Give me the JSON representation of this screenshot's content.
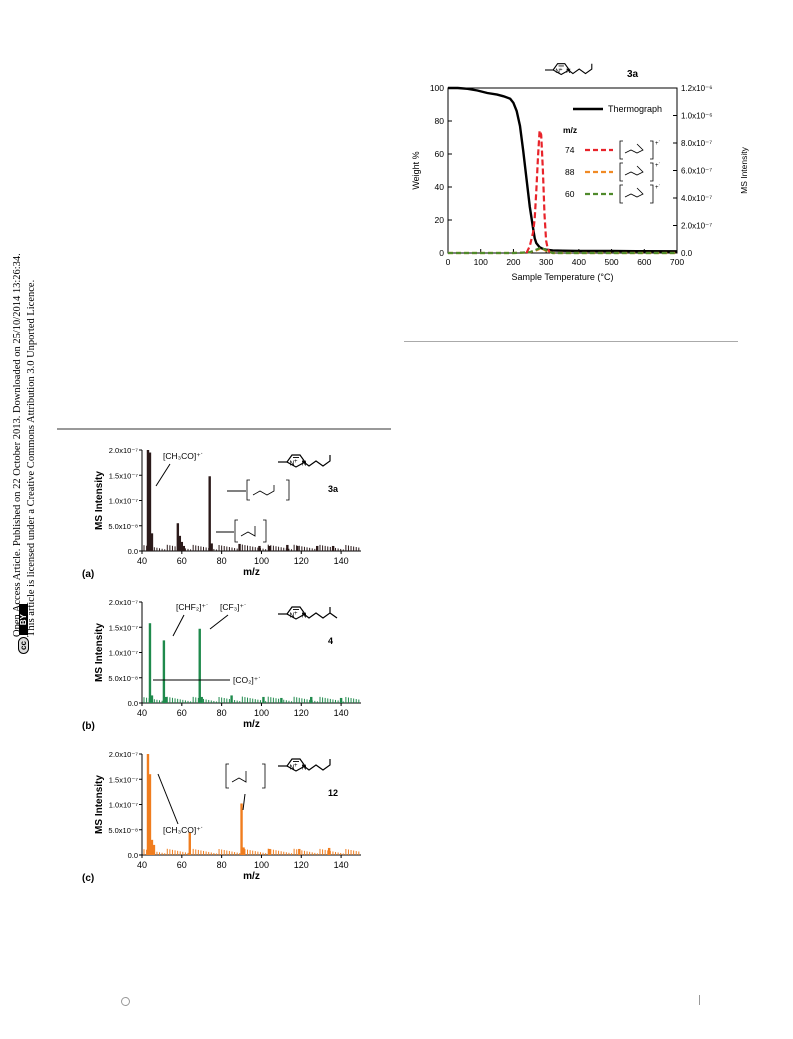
{
  "side_notice": {
    "line1": "Open Access Article. Published on 22 October 2013. Downloaded on 25/10/2014 13:26:34.",
    "line2": "This article is licensed under a Creative Commons Attribution 3.0 Unported Licence.",
    "badge_cc": "cc",
    "badge_by": "BY"
  },
  "chart_data": [
    {
      "type": "line",
      "compound_label": "3a",
      "xlabel": "Sample Temperature (°C)",
      "ylabel": "Weight %",
      "y2label": "MS Intensity",
      "xlim": [
        0,
        700
      ],
      "ylim": [
        0,
        100
      ],
      "y2lim": [
        0,
        1.2e-06
      ],
      "x_ticks": [
        "0",
        "100",
        "200",
        "300",
        "400",
        "500",
        "600",
        "700"
      ],
      "y_ticks": [
        "0",
        "20",
        "40",
        "60",
        "80",
        "100"
      ],
      "y2_ticks": [
        "0.0",
        "2.0x10⁻⁷",
        "4.0x10⁻⁷",
        "6.0x10⁻⁷",
        "8.0x10⁻⁷",
        "1.0x10⁻⁶",
        "1.2x10⁻⁶"
      ],
      "legend_placement": "right",
      "legend_mz_header": "m/z",
      "series": [
        {
          "name": "Thermograph",
          "color": "#000000",
          "axis": "left",
          "x": [
            0,
            30,
            60,
            90,
            120,
            150,
            170,
            190,
            200,
            210,
            220,
            230,
            240,
            250,
            260,
            265,
            270,
            280,
            290,
            300,
            320,
            350,
            400,
            500,
            600,
            700
          ],
          "y": [
            100,
            100,
            99.5,
            98.5,
            97,
            96,
            95,
            93.5,
            91,
            86,
            77,
            62,
            45,
            28,
            15,
            9,
            6,
            3.5,
            2.5,
            2,
            1.6,
            1.4,
            1.3,
            1.2,
            1.1,
            1.0
          ]
        },
        {
          "name": "74",
          "color": "#e8232a",
          "axis": "right",
          "x": [
            240,
            250,
            260,
            265,
            270,
            275,
            280,
            285,
            290,
            295,
            300,
            305,
            310,
            320
          ],
          "y": [
            0,
            5e-08,
            1.5e-07,
            2.5e-07,
            4.5e-07,
            7e-07,
            8.9e-07,
            8.6e-07,
            6e-07,
            2.8e-07,
            9e-08,
            3e-08,
            1e-08,
            0
          ]
        },
        {
          "name": "88",
          "color": "#f08a24",
          "axis": "right",
          "x": [
            0,
            200,
            250,
            270,
            285,
            300,
            320,
            700
          ],
          "y": [
            0,
            0,
            5e-09,
            2e-08,
            3.5e-08,
            1.5e-08,
            0,
            0
          ]
        },
        {
          "name": "60",
          "color": "#4f8a2b",
          "axis": "right",
          "x": [
            0,
            200,
            250,
            270,
            285,
            300,
            320,
            700
          ],
          "y": [
            0,
            0,
            5e-09,
            2.5e-08,
            4e-08,
            2e-08,
            0,
            0
          ]
        }
      ]
    },
    {
      "type": "bar",
      "panel_label": "(a)",
      "compound_label": "3a",
      "color": "#2b1a1a",
      "xlabel": "m/z",
      "ylabel": "MS Intensity",
      "xlim": [
        40,
        150
      ],
      "ylim": [
        0,
        2e-07
      ],
      "x_ticks": [
        "40",
        "60",
        "80",
        "100",
        "120",
        "140"
      ],
      "y_ticks": [
        "0.0",
        "5.0x10⁻⁸",
        "1.0x10⁻⁷",
        "1.5x10⁻⁷",
        "2.0x10⁻⁷"
      ],
      "annotations": [
        "[CH₃CO]⁺˙"
      ],
      "peaks": {
        "mz": [
          43,
          44,
          45,
          58,
          59,
          60,
          61,
          74,
          75,
          89,
          99,
          104,
          113,
          118,
          128,
          136
        ],
        "intensity": [
          2e-07,
          1.95e-07,
          3.5e-08,
          5.5e-08,
          3e-08,
          1.8e-08,
          1e-08,
          1.48e-07,
          1.5e-08,
          1.4e-08,
          1e-08,
          1e-08,
          1.2e-08,
          1e-08,
          1e-08,
          1e-08
        ]
      }
    },
    {
      "type": "bar",
      "panel_label": "(b)",
      "compound_label": "4",
      "color": "#1f8a4c",
      "xlabel": "m/z",
      "ylabel": "MS Intensity",
      "xlim": [
        40,
        150
      ],
      "ylim": [
        0,
        2e-07
      ],
      "x_ticks": [
        "40",
        "60",
        "80",
        "100",
        "120",
        "140"
      ],
      "y_ticks": [
        "0.0",
        "5.0x10⁻⁸",
        "1.0x10⁻⁷",
        "1.5x10⁻⁷",
        "2.0x10⁻⁷"
      ],
      "annotations": [
        "[CHF₂]⁺˙",
        "[CF₃]⁺˙",
        "[CO₂]⁺˙"
      ],
      "peaks": {
        "mz": [
          44,
          45,
          51,
          52,
          69,
          70,
          85,
          101,
          110,
          125,
          140
        ],
        "intensity": [
          1.58e-07,
          1.5e-08,
          1.24e-07,
          1.2e-08,
          1.47e-07,
          1.2e-08,
          1.5e-08,
          1.2e-08,
          1e-08,
          1.2e-08,
          1e-08
        ]
      }
    },
    {
      "type": "bar",
      "panel_label": "(c)",
      "compound_label": "12",
      "color": "#f07d1e",
      "xlabel": "m/z",
      "ylabel": "MS Intensity",
      "xlim": [
        40,
        150
      ],
      "ylim": [
        0,
        2e-07
      ],
      "x_ticks": [
        "40",
        "60",
        "80",
        "100",
        "120",
        "140"
      ],
      "y_ticks": [
        "0.0",
        "5.0x10⁻⁸",
        "1.0x10⁻⁷",
        "1.5x10⁻⁷",
        "2.0x10⁻⁷"
      ],
      "annotations": [
        "[CH₃CO]⁺˙"
      ],
      "peaks": {
        "mz": [
          43,
          44,
          45,
          46,
          64,
          90,
          91,
          104,
          119,
          134
        ],
        "intensity": [
          2e-07,
          1.6e-07,
          3e-08,
          2e-08,
          4.5e-08,
          1.02e-07,
          1.5e-08,
          1.2e-08,
          1.2e-08,
          1.4e-08
        ]
      }
    }
  ]
}
